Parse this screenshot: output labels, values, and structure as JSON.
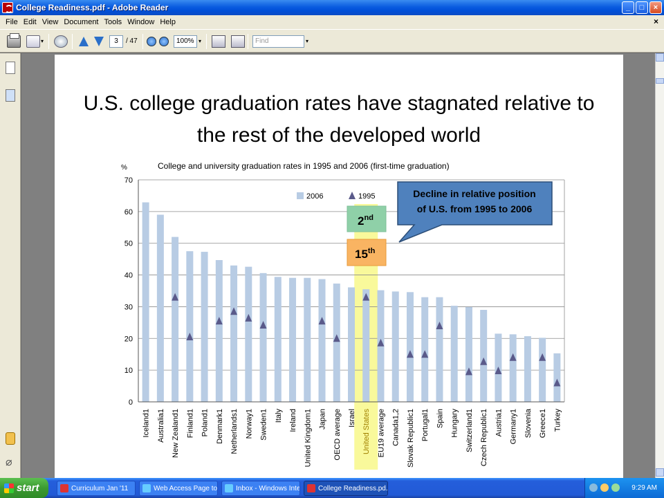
{
  "window": {
    "title": "College Readiness.pdf - Adobe Reader",
    "min": "_",
    "max": "□",
    "close": "×"
  },
  "menu": [
    "File",
    "Edit",
    "View",
    "Document",
    "Tools",
    "Window",
    "Help"
  ],
  "menu_close": "×",
  "toolbar": {
    "page_current": "3",
    "page_total": "/ 47",
    "zoom": "100%",
    "find_placeholder": "Find"
  },
  "slide": {
    "title_line1": "U.S. college graduation rates have stagnated relative to",
    "title_line2": "the rest of the developed world",
    "callout_line1": "Decline in relative position",
    "callout_line2": "of U.S. from 1995 to 2006",
    "rank_1995": "2",
    "rank_1995_suffix": "nd",
    "rank_2006": "15",
    "rank_2006_suffix": "th"
  },
  "chart_data": {
    "type": "bar",
    "title": "College and university graduation rates in 1995 and 2006 (first-time graduation)",
    "ylabel": "%",
    "ylim": [
      0,
      70
    ],
    "yticks": [
      0,
      10,
      20,
      30,
      40,
      50,
      60,
      70
    ],
    "grid": true,
    "legend_position": "top-center",
    "categories": [
      "Iceland1",
      "Australia1",
      "New Zealand1",
      "Finland1",
      "Poland1",
      "Denmark1",
      "Netherlands1",
      "Norway1",
      "Sweden1",
      "Italy",
      "Ireland",
      "United Kingdom1",
      "Japan",
      "OECD average",
      "Israel",
      "United States",
      "EU19 average",
      "Canada1,2",
      "Slovak Republic1",
      "Portugal1",
      "Spain",
      "Hungary",
      "Switzerland1",
      "Czech Republic1",
      "Austria1",
      "Germany1",
      "Slovenia",
      "Greece1",
      "Turkey"
    ],
    "highlight_category": "United States",
    "series": [
      {
        "name": "2006",
        "type": "bar",
        "color": "#b8cce4",
        "values": [
          62.9,
          59.0,
          52.0,
          47.5,
          47.3,
          44.7,
          43.0,
          42.6,
          40.6,
          39.4,
          39.1,
          39.1,
          38.7,
          37.3,
          36.1,
          35.5,
          35.2,
          34.8,
          34.6,
          33.0,
          33.0,
          30.3,
          29.9,
          29.0,
          21.5,
          21.3,
          20.7,
          20.2,
          15.3
        ]
      },
      {
        "name": "1995",
        "type": "marker",
        "color": "#5a5a8a",
        "values": [
          null,
          null,
          33.0,
          20.5,
          null,
          25.5,
          28.5,
          26.4,
          24.2,
          null,
          null,
          null,
          25.5,
          20.0,
          null,
          33.0,
          18.6,
          null,
          15.0,
          15.0,
          24.0,
          null,
          9.5,
          12.7,
          9.8,
          14.0,
          null,
          14.0,
          6.0
        ]
      }
    ]
  },
  "taskbar": {
    "start": "start",
    "tasks": [
      "Curriculum Jan '11",
      "Web Access Page to ...",
      "Inbox - Windows Inte...",
      "College Readiness.pd..."
    ],
    "clock": "9:29 AM"
  }
}
